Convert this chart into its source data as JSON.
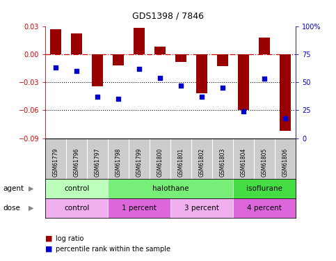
{
  "title": "GDS1398 / 7846",
  "samples": [
    "GSM61779",
    "GSM61796",
    "GSM61797",
    "GSM61798",
    "GSM61799",
    "GSM61800",
    "GSM61801",
    "GSM61802",
    "GSM61803",
    "GSM61804",
    "GSM61805",
    "GSM61806"
  ],
  "log_ratio": [
    0.027,
    0.022,
    -0.034,
    -0.012,
    0.028,
    0.008,
    -0.008,
    -0.042,
    -0.013,
    -0.06,
    0.018,
    -0.082
  ],
  "percentile": [
    63,
    60,
    37,
    35,
    62,
    54,
    47,
    37,
    45,
    24,
    53,
    18
  ],
  "bar_color": "#990000",
  "dot_color": "#0000cc",
  "ylim": [
    -0.09,
    0.03
  ],
  "yticks_left": [
    -0.09,
    -0.06,
    -0.03,
    0,
    0.03
  ],
  "yticks_right": [
    0,
    25,
    50,
    75,
    100
  ],
  "hline_dashed": 0,
  "hlines_dotted": [
    -0.03,
    -0.06
  ],
  "agent_groups": [
    {
      "label": "control",
      "start": 0,
      "end": 3,
      "color": "#bbffbb"
    },
    {
      "label": "halothane",
      "start": 3,
      "end": 9,
      "color": "#77ee77"
    },
    {
      "label": "isoflurane",
      "start": 9,
      "end": 12,
      "color": "#44dd44"
    }
  ],
  "dose_groups": [
    {
      "label": "control",
      "start": 0,
      "end": 3,
      "color": "#f0b0f0"
    },
    {
      "label": "1 percent",
      "start": 3,
      "end": 6,
      "color": "#dd66dd"
    },
    {
      "label": "3 percent",
      "start": 6,
      "end": 9,
      "color": "#f0b0f0"
    },
    {
      "label": "4 percent",
      "start": 9,
      "end": 12,
      "color": "#dd66dd"
    }
  ],
  "legend_red": "log ratio",
  "legend_blue": "percentile rank within the sample",
  "agent_label": "agent",
  "dose_label": "dose",
  "bg_color": "#ffffff",
  "plot_bg": "#ffffff",
  "right_axis_color": "#0000cc",
  "left_axis_color": "#cc0000",
  "sample_bg": "#cccccc"
}
